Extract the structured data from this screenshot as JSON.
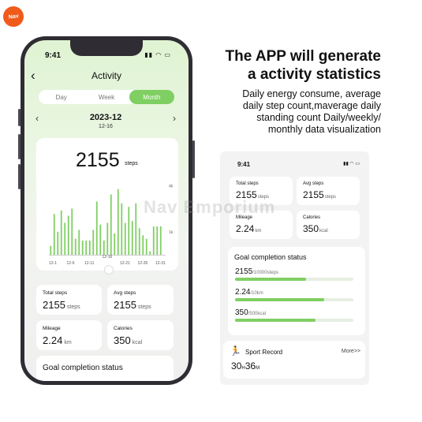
{
  "badge": {
    "text": "Nav"
  },
  "watermark": "Nav Emporium",
  "headline": {
    "line1": "The APP will generate",
    "line2": "a activity statistics"
  },
  "subtext": {
    "lines": [
      "Daily energy consume, average",
      "daily step count,maverage daily",
      "standing count Daily/weekly/",
      "monthly data visualization"
    ]
  },
  "phone": {
    "status_time": "9:41",
    "status_icons": "▮▮ ◠ ▭",
    "back_glyph": "‹",
    "title": "Activity",
    "tabs": [
      "Day",
      "Week",
      "Month"
    ],
    "active_tab": "Month",
    "date_main": "2023-12",
    "date_sub": "12-16",
    "steps": "2155",
    "steps_unit": "steps",
    "stats": {
      "total_steps": {
        "label": "Total steps",
        "value": "2155",
        "unit": "steps"
      },
      "avg_steps": {
        "label": "Avg steps",
        "value": "2155",
        "unit": "steps"
      },
      "mileage": {
        "label": "Mileage",
        "value": "2.24",
        "unit": "km"
      },
      "calories": {
        "label": "Calories",
        "value": "350",
        "unit": "kcal"
      }
    },
    "goal_title": "Goal completion status"
  },
  "panel": {
    "status_time": "9:41",
    "status_icons": "▮▮ ◠ ▭",
    "stats": {
      "total_steps": {
        "label": "Total steps",
        "value": "2155",
        "unit": "steps"
      },
      "avg_steps": {
        "label": "Avg steps",
        "value": "2155",
        "unit": "steps"
      },
      "mileage": {
        "label": "Mileage",
        "value": "2.24",
        "unit": "km"
      },
      "calories": {
        "label": "Calories",
        "value": "350",
        "unit": "kcal"
      }
    },
    "goal_title": "Goal completion status",
    "goals": [
      {
        "value": "2155",
        "unit": "/10000steps",
        "progress": 0.6
      },
      {
        "value": "2.24",
        "unit": "/10km",
        "progress": 0.75
      },
      {
        "value": "350",
        "unit": "/500kcal",
        "progress": 0.68
      }
    ],
    "sport_title": "Sport Record",
    "sport_more": "More>>",
    "sport_time_h": "30",
    "sport_time_h_unit": "H",
    "sport_time_m": "36",
    "sport_time_m_unit": "M"
  },
  "chart_data": {
    "type": "bar",
    "x_tick_labels": [
      "12-1",
      "12-6",
      "12-11",
      "12-16",
      "12-21",
      "12-26",
      "12-31"
    ],
    "y_tick_labels": [
      "1k",
      "4k"
    ],
    "values": [
      0.5,
      2.3,
      1.3,
      2.5,
      1.8,
      2.2,
      2.6,
      0.9,
      1.4,
      0.8,
      0.8,
      0.8,
      1.4,
      3.0,
      1.7,
      0.8,
      1.8,
      3.4,
      1.2,
      3.7,
      2.9,
      1.8,
      2.7,
      1.9,
      2.9,
      1.5,
      1.1,
      0.9,
      0.2,
      1.6,
      1.6,
      1.6
    ],
    "ylim": [
      0,
      4
    ],
    "color": "#7fcf63"
  }
}
